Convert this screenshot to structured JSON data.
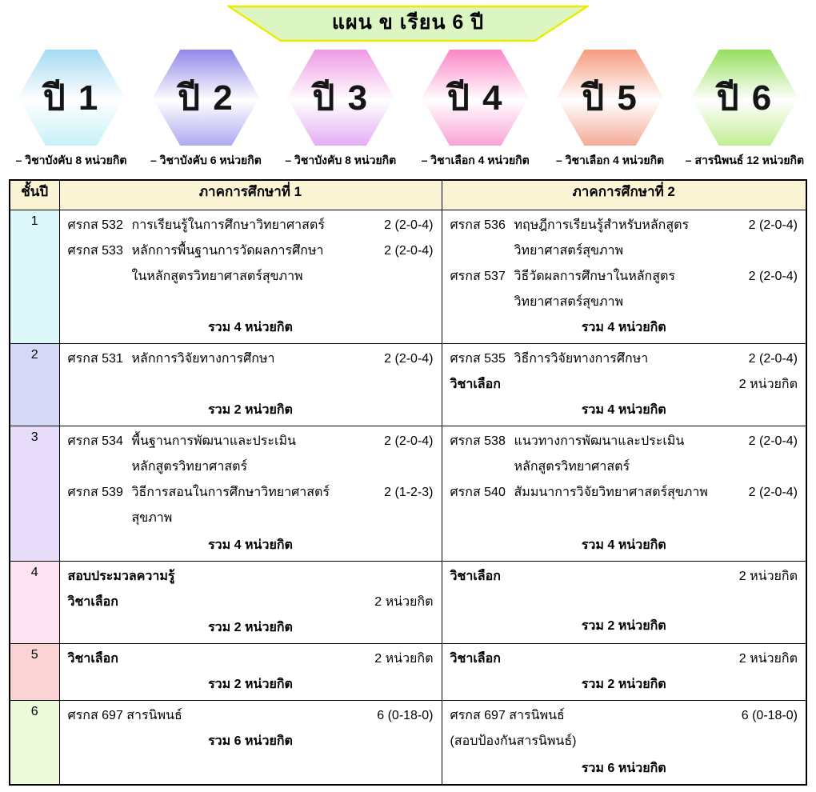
{
  "banner": {
    "title": "แผน ข เรียน 6 ปี",
    "fill": "#DBF5C3",
    "border": "#ECEC00"
  },
  "years": [
    {
      "label": "ปี 1",
      "caption": "– วิชาบังคับ  8 หน่วยกิต",
      "grad_top": "#A5DAF3",
      "grad_bottom": "#C8F1F8",
      "cell_bg": "#DCF7F9"
    },
    {
      "label": "ปี 2",
      "caption": "– วิชาบังคับ  6 หน่วยกิต",
      "grad_top": "#9188E8",
      "grad_bottom": "#AEA9F0",
      "cell_bg": "#D5D8F6"
    },
    {
      "label": "ปี 3",
      "caption": "– วิชาบังคับ  8 หน่วยกิต",
      "grad_top": "#EE9AE4",
      "grad_bottom": "#E4ADF4",
      "cell_bg": "#E7DCF9"
    },
    {
      "label": "ปี 4",
      "caption": "– วิชาเลือก  4 หน่วยกิต",
      "grad_top": "#FA86C6",
      "grad_bottom": "#F9A2D6",
      "cell_bg": "#FDE3F2"
    },
    {
      "label": "ปี 5",
      "caption": "– วิชาเลือก  4 หน่วยกิต",
      "grad_top": "#F69B80",
      "grad_bottom": "#F5AB97",
      "cell_bg": "#FBD3D4"
    },
    {
      "label": "ปี 6",
      "caption": "– สารนิพนธ์ 12 หน่วยกิต",
      "grad_top": "#95DF5C",
      "grad_bottom": "#C2EE92",
      "cell_bg": "#EDFADC"
    }
  ],
  "table": {
    "header": {
      "year": "ชั้นปี",
      "sem1": "ภาคการศึกษาที่ 1",
      "sem2": "ภาคการศึกษาที่ 2",
      "bg": "#FAF3D4"
    },
    "rows": [
      {
        "year": "1",
        "sem1": {
          "lines": [
            {
              "type": "course",
              "code": "ศรกส 532",
              "title": "การเรียนรู้ในการศึกษาวิทยาศาสตร์",
              "credit": "2 (2-0-4)"
            },
            {
              "type": "course",
              "code": "ศรกส 533",
              "title": "หลักการพื้นฐานการวัดผลการศึกษา",
              "credit": "2 (2-0-4)"
            },
            {
              "type": "cont",
              "title": "ในหลักสูตรวิทยาศาสตร์สุขภาพ"
            }
          ],
          "total": "รวม 4 หน่วยกิต",
          "total_at_bottom": true
        },
        "sem2": {
          "lines": [
            {
              "type": "course",
              "code": "ศรกส 536",
              "title": "ทฤษฎีการเรียนรู้สำหรับหลักสูตร",
              "credit": "2 (2-0-4)"
            },
            {
              "type": "cont",
              "title": "วิทยาศาสตร์สุขภาพ"
            },
            {
              "type": "course",
              "code": "ศรกส 537",
              "title": "วิธีวัดผลการศึกษาในหลักสูตร",
              "credit": "2 (2-0-4)"
            },
            {
              "type": "cont",
              "title": "วิทยาศาสตร์สุขภาพ"
            }
          ],
          "total": "รวม 4 หน่วยกิต",
          "total_at_bottom": true
        }
      },
      {
        "year": "2",
        "sem1": {
          "lines": [
            {
              "type": "course",
              "code": "ศรกส 531",
              "title": "หลักการวิจัยทางการศึกษา",
              "credit": "2 (2-0-4)"
            }
          ],
          "total": "รวม 2 หน่วยกิต",
          "total_at_bottom": true
        },
        "sem2": {
          "lines": [
            {
              "type": "course",
              "code": "ศรกส 535",
              "title": "วิธีการวิจัยทางการศึกษา",
              "credit": "2 (2-0-4)"
            },
            {
              "type": "bold",
              "title": "วิชาเลือก",
              "credit": "2 หน่วยกิต"
            }
          ],
          "total": "รวม 4 หน่วยกิต",
          "total_at_bottom": true
        }
      },
      {
        "year": "3",
        "sem1": {
          "lines": [
            {
              "type": "course",
              "code": "ศรกส 534",
              "title": "พื้นฐานการพัฒนาและประเมิน",
              "credit": "2 (2-0-4)"
            },
            {
              "type": "cont",
              "title": "หลักสูตรวิทยาศาสตร์"
            },
            {
              "type": "course",
              "code": "ศรกส 539",
              "title": "วิธีการสอนในการศึกษาวิทยาศาสตร์",
              "credit": "2 (1-2-3)"
            },
            {
              "type": "cont",
              "title": "สุขภาพ"
            }
          ],
          "total": "รวม 4 หน่วยกิต",
          "total_at_bottom": true
        },
        "sem2": {
          "lines": [
            {
              "type": "course",
              "code": "ศรกส 538",
              "title": "แนวทางการพัฒนาและประเมิน",
              "credit": "2 (2-0-4)"
            },
            {
              "type": "cont",
              "title": "หลักสูตรวิทยาศาสตร์"
            },
            {
              "type": "course",
              "code": "ศรกส 540",
              "title": "สัมมนาการวิจัยวิทยาศาสตร์สุขภาพ",
              "credit": "2 (2-0-4)"
            }
          ],
          "total": "รวม 4 หน่วยกิต",
          "total_at_bottom": true
        }
      },
      {
        "year": "4",
        "sem1": {
          "lines": [
            {
              "type": "bold",
              "title": "สอบประมวลความรู้",
              "credit": ""
            },
            {
              "type": "bold",
              "title": "วิชาเลือก",
              "credit": "2 หน่วยกิต"
            }
          ],
          "total": "รวม 2 หน่วยกิต",
          "total_at_bottom": true
        },
        "sem2": {
          "lines": [
            {
              "type": "bold",
              "title": "วิชาเลือก",
              "credit": "2 หน่วยกิต"
            }
          ],
          "total": "รวม 2 หน่วยกิต",
          "total_at_bottom": true
        }
      },
      {
        "year": "5",
        "sem1": {
          "lines": [
            {
              "type": "bold",
              "title": "วิชาเลือก",
              "credit": "2 หน่วยกิต"
            }
          ],
          "total": "รวม 2 หน่วยกิต",
          "total_at_bottom": true
        },
        "sem2": {
          "lines": [
            {
              "type": "bold",
              "title": "วิชาเลือก",
              "credit": "2 หน่วยกิต"
            }
          ],
          "total": "รวม 2 หน่วยกิต",
          "total_at_bottom": true
        }
      },
      {
        "year": "6",
        "sem1": {
          "lines": [
            {
              "type": "text",
              "title": "ศรกส 697 สารนิพนธ์",
              "credit": "6 (0-18-0)"
            }
          ],
          "total": "รวม 6 หน่วยกิต",
          "total_at_bottom": false
        },
        "sem2": {
          "lines": [
            {
              "type": "text",
              "title": "ศรกส 697 สารนิพนธ์",
              "credit": "6 (0-18-0)"
            },
            {
              "type": "text",
              "title": "(สอบป้องกันสารนิพนธ์)",
              "credit": ""
            }
          ],
          "total": "รวม 6 หน่วยกิต",
          "total_at_bottom": true
        }
      }
    ]
  }
}
